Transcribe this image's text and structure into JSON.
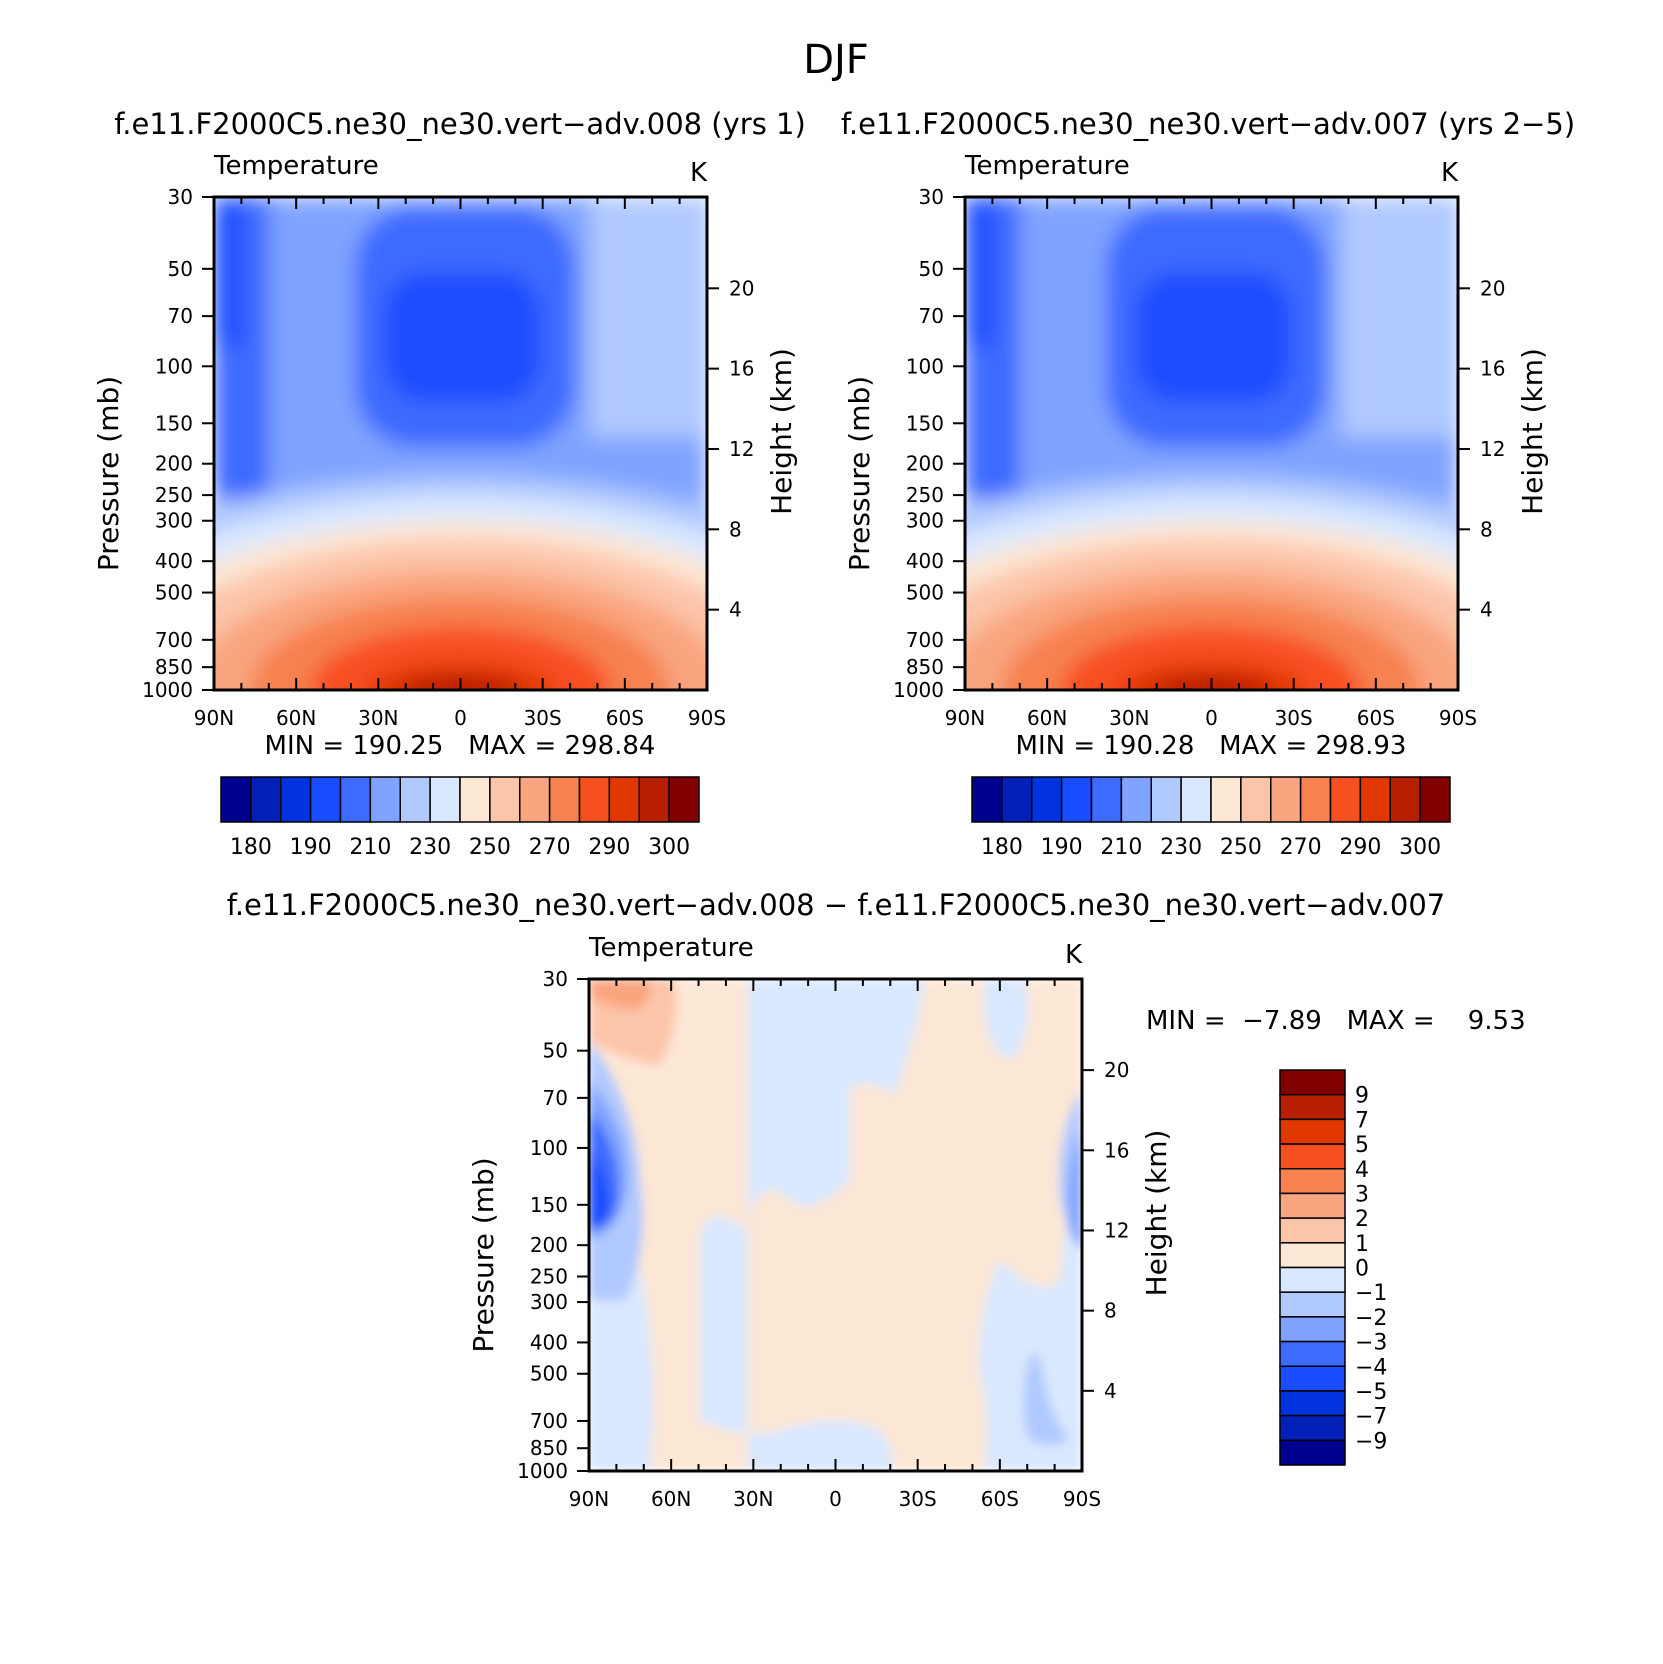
{
  "figure": {
    "title": "DJF"
  },
  "palettes": {
    "abs": [
      "#00008f",
      "#0020b8",
      "#0033e0",
      "#1a4dff",
      "#3d6bff",
      "#7fa3ff",
      "#b0c9ff",
      "#d9e8ff",
      "#fde7d5",
      "#fcc5a9",
      "#f9a57f",
      "#f7814f",
      "#f75020",
      "#e03800",
      "#b81f00",
      "#800000"
    ],
    "diff": [
      "#00008f",
      "#0020b8",
      "#0033e0",
      "#1a4dff",
      "#3d6bff",
      "#7fa3ff",
      "#b0c9ff",
      "#d9e8ff",
      "#fde7d5",
      "#fcc5a9",
      "#f9a57f",
      "#f7814f",
      "#f75020",
      "#e03800",
      "#b81f00",
      "#800000"
    ]
  },
  "chart_data": [
    {
      "id": "panel1",
      "type": "heatmap",
      "title": "f.e11.F2000C5.ne30_ne30.vert−adv.008 (yrs 1)",
      "left_label": "Temperature",
      "units": "K",
      "ylabel": "Pressure (mb)",
      "ylabel_right": "Height (km)",
      "x_ticks": [
        "90N",
        "60N",
        "30N",
        "0",
        "30S",
        "60S",
        "90S"
      ],
      "y_ticks": [
        "30",
        "50",
        "70",
        "100",
        "150",
        "200",
        "250",
        "300",
        "400",
        "500",
        "700",
        "850",
        "1000"
      ],
      "y_ticks_right": [
        "20",
        "16",
        "12",
        "8",
        "4"
      ],
      "min_max": "MIN = 190.25   MAX = 298.84",
      "min": 190.25,
      "max": 298.84,
      "colorbar_labels": [
        "180",
        "190",
        "210",
        "230",
        "250",
        "270",
        "290",
        "300"
      ],
      "colorbar_levels": [
        180,
        185,
        190,
        200,
        210,
        220,
        230,
        240,
        250,
        260,
        270,
        280,
        290,
        295,
        300
      ]
    },
    {
      "id": "panel2",
      "type": "heatmap",
      "title": "f.e11.F2000C5.ne30_ne30.vert−adv.007 (yrs 2−5)",
      "left_label": "Temperature",
      "units": "K",
      "ylabel": "Pressure (mb)",
      "ylabel_right": "Height (km)",
      "x_ticks": [
        "90N",
        "60N",
        "30N",
        "0",
        "30S",
        "60S",
        "90S"
      ],
      "y_ticks": [
        "30",
        "50",
        "70",
        "100",
        "150",
        "200",
        "250",
        "300",
        "400",
        "500",
        "700",
        "850",
        "1000"
      ],
      "y_ticks_right": [
        "20",
        "16",
        "12",
        "8",
        "4"
      ],
      "min_max": "MIN = 190.28   MAX = 298.93",
      "min": 190.28,
      "max": 298.93,
      "colorbar_labels": [
        "180",
        "190",
        "210",
        "230",
        "250",
        "270",
        "290",
        "300"
      ],
      "colorbar_levels": [
        180,
        185,
        190,
        200,
        210,
        220,
        230,
        240,
        250,
        260,
        270,
        280,
        290,
        295,
        300
      ]
    },
    {
      "id": "panel3",
      "type": "heatmap",
      "title": "f.e11.F2000C5.ne30_ne30.vert−adv.008 − f.e11.F2000C5.ne30_ne30.vert−adv.007",
      "left_label": "Temperature",
      "units": "K",
      "ylabel": "Pressure (mb)",
      "ylabel_right": "Height (km)",
      "x_ticks": [
        "90N",
        "60N",
        "30N",
        "0",
        "30S",
        "60S",
        "90S"
      ],
      "y_ticks": [
        "30",
        "50",
        "70",
        "100",
        "150",
        "200",
        "250",
        "300",
        "400",
        "500",
        "700",
        "850",
        "1000"
      ],
      "y_ticks_right": [
        "20",
        "16",
        "12",
        "8",
        "4"
      ],
      "min_max": "MIN =  −7.89   MAX =    9.53",
      "min": -7.89,
      "max": 9.53,
      "colorbar_labels": [
        "9",
        "7",
        "5",
        "4",
        "3",
        "2",
        "1",
        "0",
        "−1",
        "−2",
        "−3",
        "−4",
        "−5",
        "−7",
        "−9"
      ],
      "colorbar_levels": [
        -9,
        -7,
        -5,
        -4,
        -3,
        -2,
        -1,
        0,
        1,
        2,
        3,
        4,
        5,
        7,
        9
      ]
    }
  ]
}
